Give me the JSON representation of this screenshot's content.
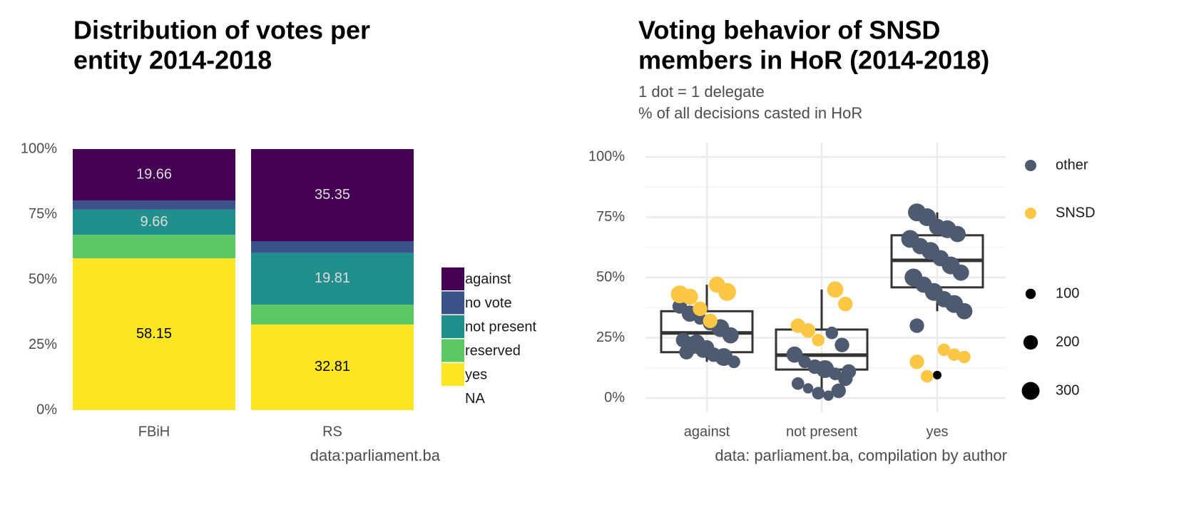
{
  "chart_data": [
    {
      "type": "stacked_bar",
      "title": [
        "Distribution of votes per",
        "entity 2014-2018"
      ],
      "caption": "data:parliament.ba",
      "categories": [
        "FBiH",
        "RS"
      ],
      "series": [
        {
          "name": "against",
          "color": "#440154",
          "values": [
            19.66,
            35.35
          ],
          "show_labels": true,
          "label_color": "#dcdcdc"
        },
        {
          "name": "no vote",
          "color": "#3b528b",
          "values": [
            3.53,
            4.43
          ],
          "show_labels": false
        },
        {
          "name": "not present",
          "color": "#21908c",
          "values": [
            9.66,
            19.81
          ],
          "show_labels": true,
          "label_color": "#dcdcdc"
        },
        {
          "name": "reserved",
          "color": "#5dc863",
          "values": [
            9.0,
            7.6
          ],
          "show_labels": false
        },
        {
          "name": "yes",
          "color": "#fde725",
          "values": [
            58.15,
            32.81
          ],
          "show_labels": true,
          "label_color": "#000000"
        },
        {
          "name": "NA",
          "color": null,
          "values": [
            0,
            0
          ],
          "show_labels": false
        }
      ],
      "ylim": [
        0,
        100
      ],
      "yticks": [
        {
          "value": 0,
          "label": "0%"
        },
        {
          "value": 25,
          "label": "25%"
        },
        {
          "value": 50,
          "label": "50%"
        },
        {
          "value": 75,
          "label": "75%"
        },
        {
          "value": 100,
          "label": "100%"
        }
      ]
    },
    {
      "type": "box_jitter",
      "title": [
        "Voting behavior of SNSD",
        "members in HoR (2014-2018)"
      ],
      "subtitle": [
        "1 dot = 1 delegate",
        "% of all decisions casted in HoR"
      ],
      "caption": "data: parliament.ba, compilation by author",
      "categories": [
        "against",
        "not present",
        "yes"
      ],
      "boxes": [
        {
          "low": 15,
          "q1": 19,
          "median": 27,
          "q3": 36,
          "high": 47
        },
        {
          "low": 0,
          "q1": 11.8,
          "median": 17.8,
          "q3": 28.4,
          "high": 45
        },
        {
          "low": 36,
          "q1": 45.9,
          "median": 57.1,
          "q3": 67.5,
          "high": 77
        }
      ],
      "outliers": [
        [],
        [],
        [
          9.5
        ]
      ],
      "series": [
        {
          "name": "other",
          "color": "#4d5a70",
          "cat": [
            0,
            0,
            0,
            0,
            0,
            0,
            0,
            0,
            0,
            0,
            0,
            0,
            0,
            0,
            0,
            1,
            1,
            1,
            1,
            1,
            1,
            1,
            1,
            1,
            1,
            1,
            1,
            1,
            1,
            2,
            2,
            2,
            2,
            2,
            2,
            2,
            2,
            2,
            2,
            2,
            2,
            2,
            2,
            2,
            2,
            2,
            2
          ],
          "values": [
            38,
            35,
            33,
            31,
            29,
            26,
            24,
            22,
            20,
            18,
            17,
            15,
            19,
            23,
            21,
            27,
            22,
            18,
            15,
            13,
            12,
            10,
            8,
            6,
            4,
            2,
            1,
            3,
            11,
            77,
            75,
            71,
            70,
            68,
            66,
            63,
            61,
            58,
            55,
            52,
            50,
            47,
            44,
            41,
            39,
            36,
            30
          ],
          "sizes": [
            200,
            250,
            150,
            200,
            300,
            250,
            200,
            300,
            250,
            200,
            300,
            150,
            200,
            250,
            200,
            150,
            200,
            250,
            150,
            200,
            300,
            150,
            200,
            150,
            100,
            150,
            100,
            200,
            200,
            300,
            300,
            250,
            300,
            250,
            300,
            250,
            300,
            250,
            300,
            250,
            300,
            250,
            300,
            250,
            300,
            250,
            200
          ]
        },
        {
          "name": "SNSD",
          "color": "#fcc745",
          "cat": [
            0,
            0,
            0,
            0,
            0,
            0,
            1,
            1,
            1,
            1,
            1,
            2,
            2,
            2,
            2,
            2
          ],
          "values": [
            47,
            44,
            43,
            42,
            37,
            32,
            45,
            39,
            30,
            28,
            24,
            20,
            18,
            17,
            15,
            9
          ],
          "sizes": [
            250,
            300,
            300,
            250,
            200,
            200,
            250,
            200,
            200,
            200,
            150,
            150,
            150,
            150,
            200,
            150
          ]
        }
      ],
      "size_legend": [
        100,
        200,
        300
      ],
      "ylim": [
        0,
        100
      ],
      "yticks": [
        {
          "value": 0,
          "label": "0%"
        },
        {
          "value": 25,
          "label": "25%"
        },
        {
          "value": 50,
          "label": "50%"
        },
        {
          "value": 75,
          "label": "75%"
        },
        {
          "value": 100,
          "label": "100%"
        }
      ],
      "grid": true
    }
  ]
}
